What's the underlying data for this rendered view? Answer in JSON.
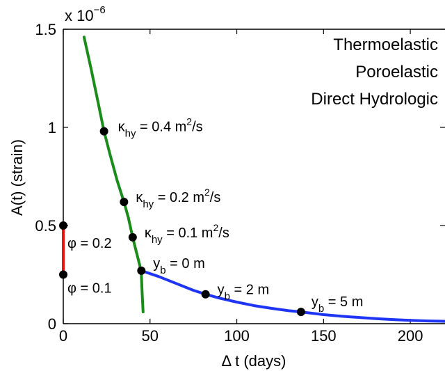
{
  "chart_data": {
    "type": "line",
    "xlabel": "Δ t (days)",
    "ylabel": "A(t) (strain)",
    "y_exponent_label": "x 10",
    "y_exponent_power": "−6",
    "xlim": [
      0,
      220
    ],
    "ylim": [
      0,
      1.5
    ],
    "xticks": [
      0,
      50,
      100,
      150,
      200
    ],
    "yticks": [
      0,
      0.5,
      1,
      1.5
    ],
    "xtick_labels": [
      "0",
      "50",
      "100",
      "150",
      "200"
    ],
    "ytick_labels": [
      "0",
      "0.5",
      "1",
      "1.5"
    ],
    "grid": false,
    "legend_position": "top-right",
    "series": [
      {
        "name": "Thermoelastic",
        "color": "#1f35f5",
        "points": [
          [
            45,
            0.27
          ],
          [
            55,
            0.24
          ],
          [
            65,
            0.205
          ],
          [
            75,
            0.17
          ],
          [
            82,
            0.15
          ],
          [
            90,
            0.13
          ],
          [
            100,
            0.11
          ],
          [
            110,
            0.092
          ],
          [
            120,
            0.078
          ],
          [
            130,
            0.066
          ],
          [
            137,
            0.06
          ],
          [
            150,
            0.046
          ],
          [
            160,
            0.038
          ],
          [
            170,
            0.032
          ],
          [
            180,
            0.026
          ],
          [
            190,
            0.021
          ],
          [
            200,
            0.017
          ],
          [
            210,
            0.014
          ],
          [
            220,
            0.012
          ]
        ]
      },
      {
        "name": "Poroelastic",
        "color": "#1a8c1a",
        "points": [
          [
            12,
            1.46
          ],
          [
            16,
            1.3
          ],
          [
            20,
            1.13
          ],
          [
            23.5,
            0.98
          ],
          [
            27,
            0.86
          ],
          [
            31,
            0.73
          ],
          [
            35,
            0.62
          ],
          [
            37.5,
            0.54
          ],
          [
            40,
            0.44
          ],
          [
            42,
            0.37
          ],
          [
            44,
            0.3
          ],
          [
            45,
            0.25
          ],
          [
            45.5,
            0.15
          ],
          [
            46,
            0.06
          ]
        ]
      },
      {
        "name": "Direct Hydrologic",
        "color": "#e8150f",
        "points": [
          [
            0,
            0.5
          ],
          [
            0,
            0.25
          ]
        ]
      }
    ],
    "markers": [
      {
        "x": 23.5,
        "y": 0.98,
        "label": "κ_hy = 0.4 m²/s"
      },
      {
        "x": 35,
        "y": 0.62,
        "label": "κ_hy = 0.2 m²/s"
      },
      {
        "x": 40,
        "y": 0.44,
        "label": "κ_hy = 0.1 m²/s"
      },
      {
        "x": 45,
        "y": 0.27,
        "label": "y_b = 0 m"
      },
      {
        "x": 82,
        "y": 0.15,
        "label": "y_b = 2 m"
      },
      {
        "x": 137,
        "y": 0.06,
        "label": "y_b = 5 m"
      },
      {
        "x": 0,
        "y": 0.5,
        "label": "φ = 0.2"
      },
      {
        "x": 0,
        "y": 0.25,
        "label": "φ = 0.1"
      }
    ]
  }
}
